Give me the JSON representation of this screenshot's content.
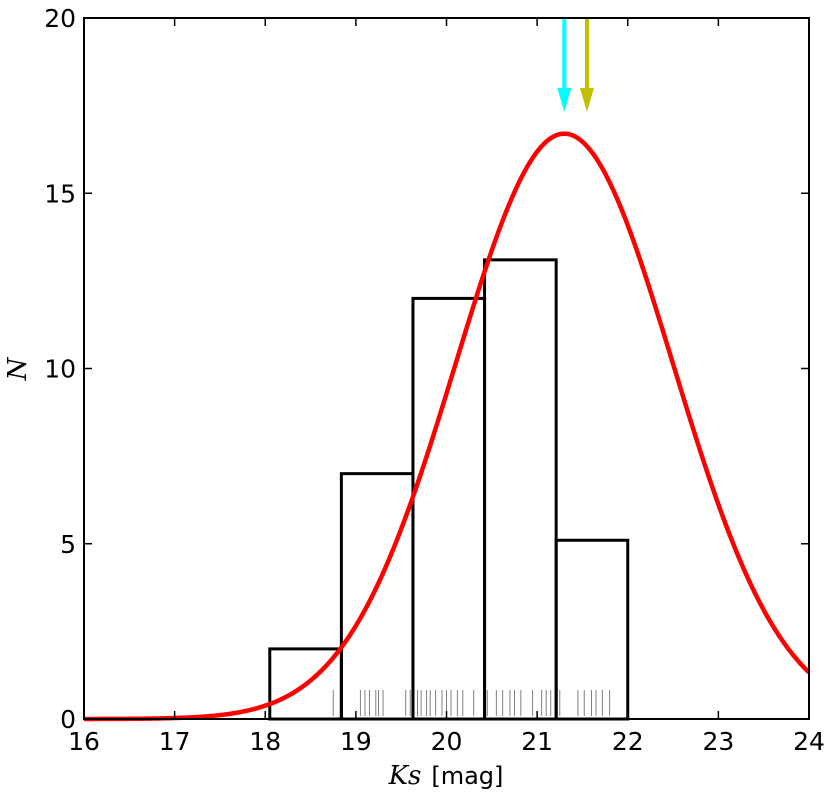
{
  "chart_data": {
    "type": "bar",
    "xlabel_symbol": "Ks",
    "xlabel_unit": "[mag]",
    "ylabel": "N",
    "xlim": [
      16,
      24
    ],
    "ylim": [
      0,
      20
    ],
    "xticks": [
      "16",
      "17",
      "18",
      "19",
      "20",
      "21",
      "22",
      "23",
      "24"
    ],
    "yticks": [
      "0",
      "5",
      "10",
      "15",
      "20"
    ],
    "histogram": {
      "name": "histogram",
      "bins": [
        {
          "x0": 18.05,
          "x1": 18.84,
          "count": 2
        },
        {
          "x0": 18.84,
          "x1": 19.63,
          "count": 7
        },
        {
          "x0": 19.63,
          "x1": 20.42,
          "count": 12
        },
        {
          "x0": 20.42,
          "x1": 21.21,
          "count": 13.1
        },
        {
          "x0": 21.21,
          "x1": 22.0,
          "count": 5.1
        }
      ],
      "color": "#000000"
    },
    "gaussian_fit": {
      "color": "#ff0000",
      "amplitude": 16.7,
      "mean": 21.3,
      "sigma": 1.2
    },
    "rug": {
      "color": "#808080",
      "values": [
        18.75,
        19.05,
        19.1,
        19.15,
        19.22,
        19.25,
        19.3,
        19.55,
        19.6,
        19.68,
        19.72,
        19.78,
        19.82,
        19.88,
        19.95,
        20.0,
        20.05,
        20.12,
        20.18,
        20.3,
        20.45,
        20.55,
        20.62,
        20.7,
        20.75,
        20.82,
        20.95,
        21.05,
        21.1,
        21.15,
        21.2,
        21.25,
        21.45,
        21.52,
        21.6,
        21.65,
        21.72,
        21.8,
        22.0
      ]
    },
    "arrows": [
      {
        "x": 21.3,
        "color": "#00ffff"
      },
      {
        "x": 21.55,
        "color": "#c0c000"
      }
    ],
    "grid": false
  }
}
